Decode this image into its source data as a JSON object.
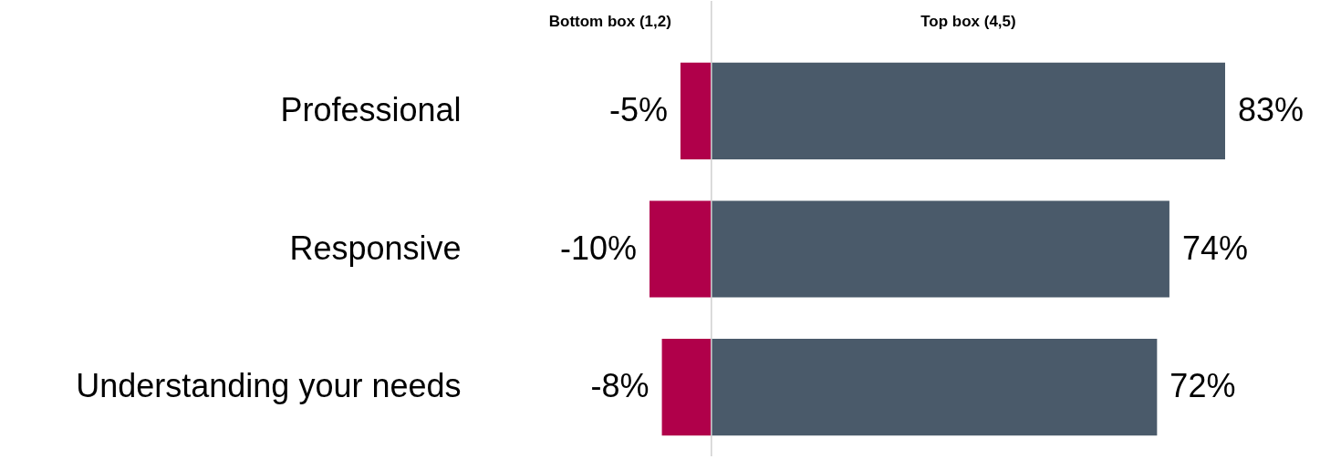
{
  "chart_data": {
    "type": "bar",
    "orientation": "horizontal",
    "categories": [
      "Professional",
      "Responsive",
      "Understanding your needs"
    ],
    "series": [
      {
        "name": "Bottom box (1,2)",
        "color": "#b0004a",
        "values": [
          -5,
          -10,
          -8
        ],
        "value_labels": [
          "-5%",
          "-10%",
          "-8%"
        ]
      },
      {
        "name": "Top box (4,5)",
        "color": "#4a5a6a",
        "values": [
          83,
          74,
          72
        ],
        "value_labels": [
          "83%",
          "74%",
          "72%"
        ]
      }
    ],
    "stacked": true,
    "legend": false
  }
}
